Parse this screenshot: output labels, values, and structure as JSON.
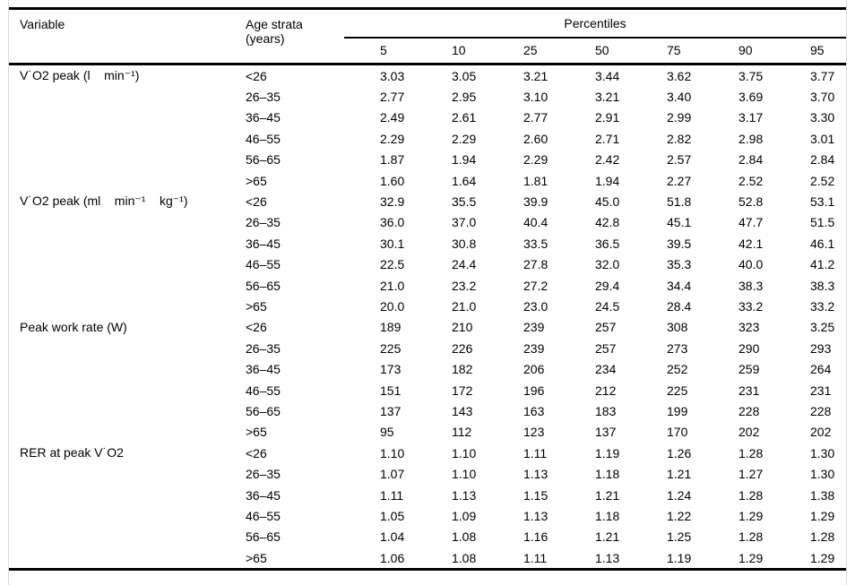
{
  "table": {
    "headers": {
      "variable": "Variable",
      "age_strata": "Age strata (years)",
      "percentiles_group": "Percentiles",
      "percentile_columns": [
        "5",
        "10",
        "25",
        "50",
        "75",
        "90",
        "95"
      ]
    },
    "groups": [
      {
        "variable": "V˙O2 peak (l    min⁻¹)",
        "rows": [
          {
            "age": "<26",
            "values": [
              "3.03",
              "3.05",
              "3.21",
              "3.44",
              "3.62",
              "3.75",
              "3.77"
            ]
          },
          {
            "age": "26–35",
            "values": [
              "2.77",
              "2.95",
              "3.10",
              "3.21",
              "3.40",
              "3.69",
              "3.70"
            ]
          },
          {
            "age": "36–45",
            "values": [
              "2.49",
              "2.61",
              "2.77",
              "2.91",
              "2.99",
              "3.17",
              "3.30"
            ]
          },
          {
            "age": "46–55",
            "values": [
              "2.29",
              "2.29",
              "2.60",
              "2.71",
              "2.82",
              "2.98",
              "3.01"
            ]
          },
          {
            "age": "56–65",
            "values": [
              "1.87",
              "1.94",
              "2.29",
              "2.42",
              "2.57",
              "2.84",
              "2.84"
            ]
          },
          {
            "age": ">65",
            "values": [
              "1.60",
              "1.64",
              "1.81",
              "1.94",
              "2.27",
              "2.52",
              "2.52"
            ]
          }
        ]
      },
      {
        "variable": "V˙O2 peak (ml    min⁻¹    kg⁻¹)",
        "rows": [
          {
            "age": "<26",
            "values": [
              "32.9",
              "35.5",
              "39.9",
              "45.0",
              "51.8",
              "52.8",
              "53.1"
            ]
          },
          {
            "age": "26–35",
            "values": [
              "36.0",
              "37.0",
              "40.4",
              "42.8",
              "45.1",
              "47.7",
              "51.5"
            ]
          },
          {
            "age": "36–45",
            "values": [
              "30.1",
              "30.8",
              "33.5",
              "36.5",
              "39.5",
              "42.1",
              "46.1"
            ]
          },
          {
            "age": "46–55",
            "values": [
              "22.5",
              "24.4",
              "27.8",
              "32.0",
              "35.3",
              "40.0",
              "41.2"
            ]
          },
          {
            "age": "56–65",
            "values": [
              "21.0",
              "23.2",
              "27.2",
              "29.4",
              "34.4",
              "38.3",
              "38.3"
            ]
          },
          {
            "age": ">65",
            "values": [
              "20.0",
              "21.0",
              "23.0",
              "24.5",
              "28.4",
              "33.2",
              "33.2"
            ]
          }
        ]
      },
      {
        "variable": "Peak work rate (W)",
        "rows": [
          {
            "age": "<26",
            "values": [
              "189",
              "210",
              "239",
              "257",
              "308",
              "323",
              "3.25"
            ]
          },
          {
            "age": "26–35",
            "values": [
              "225",
              "226",
              "239",
              "257",
              "273",
              "290",
              "293"
            ]
          },
          {
            "age": "36–45",
            "values": [
              "173",
              "182",
              "206",
              "234",
              "252",
              "259",
              "264"
            ]
          },
          {
            "age": "46–55",
            "values": [
              "151",
              "172",
              "196",
              "212",
              "225",
              "231",
              "231"
            ]
          },
          {
            "age": "56–65",
            "values": [
              "137",
              "143",
              "163",
              "183",
              "199",
              "228",
              "228"
            ]
          },
          {
            "age": ">65",
            "values": [
              "95",
              "112",
              "123",
              "137",
              "170",
              "202",
              "202"
            ]
          }
        ]
      },
      {
        "variable": "RER at peak V˙O2",
        "rows": [
          {
            "age": "<26",
            "values": [
              "1.10",
              "1.10",
              "1.11",
              "1.19",
              "1.26",
              "1.28",
              "1.30"
            ]
          },
          {
            "age": "26–35",
            "values": [
              "1.07",
              "1.10",
              "1.13",
              "1.18",
              "1.21",
              "1.27",
              "1.30"
            ]
          },
          {
            "age": "36–45",
            "values": [
              "1.11",
              "1.13",
              "1.15",
              "1.21",
              "1.24",
              "1.28",
              "1.38"
            ]
          },
          {
            "age": "46–55",
            "values": [
              "1.05",
              "1.09",
              "1.13",
              "1.18",
              "1.22",
              "1.29",
              "1.29"
            ]
          },
          {
            "age": "56–65",
            "values": [
              "1.04",
              "1.08",
              "1.16",
              "1.21",
              "1.25",
              "1.28",
              "1.28"
            ]
          },
          {
            "age": ">65",
            "values": [
              "1.06",
              "1.08",
              "1.11",
              "1.13",
              "1.19",
              "1.29",
              "1.29"
            ]
          }
        ]
      }
    ],
    "colors": {
      "rule": "#000000",
      "frame": "#dcdcdc",
      "text": "#000000",
      "background": "#ffffff"
    }
  }
}
